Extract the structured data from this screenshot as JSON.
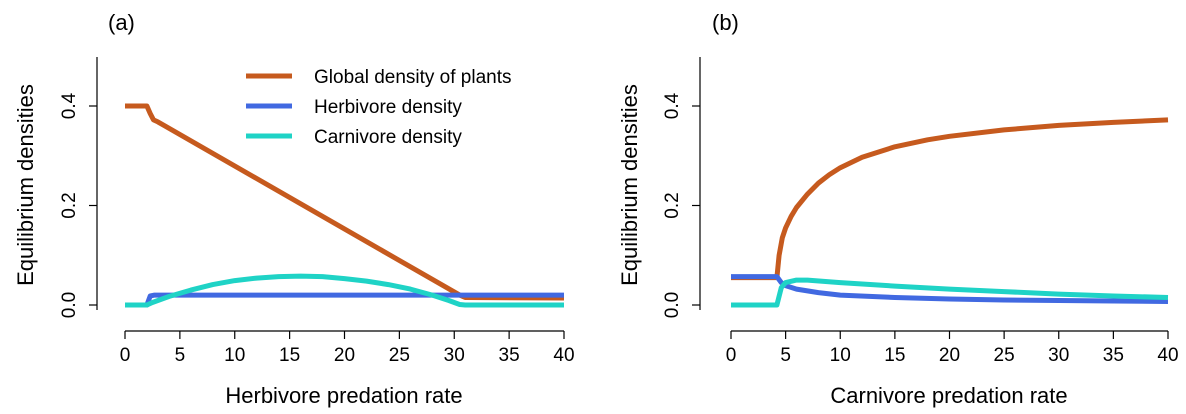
{
  "colors": {
    "plants": "#c65a1e",
    "herbivore": "#4169e1",
    "carnivore": "#1fd3c6"
  },
  "chart_data": [
    {
      "type": "line",
      "panel_label": "(a)",
      "xlabel": "Herbivore predation rate",
      "ylabel": "Equilibrium densities",
      "xlim": [
        0,
        40
      ],
      "ylim": [
        0,
        0.52
      ],
      "x_ticks": [
        0,
        5,
        10,
        15,
        20,
        25,
        30,
        35,
        40
      ],
      "y_ticks": [
        0.0,
        0.2,
        0.4
      ],
      "y_tick_labels": [
        "0.0",
        "0.2",
        "0.4"
      ],
      "legend": {
        "position": "top-right",
        "entries": [
          "Global density of plants",
          "Herbivore density",
          "Carnivore density"
        ]
      },
      "series": [
        {
          "name": "Global density of plants",
          "color_key": "plants",
          "points": [
            [
              0,
              0.4
            ],
            [
              2,
              0.4
            ],
            [
              2.3,
              0.385
            ],
            [
              2.6,
              0.372
            ],
            [
              3,
              0.368
            ],
            [
              30.5,
              0.02
            ],
            [
              31,
              0.015
            ],
            [
              40,
              0.014
            ]
          ]
        },
        {
          "name": "Herbivore density",
          "color_key": "herbivore",
          "points": [
            [
              0,
              0.0
            ],
            [
              2.0,
              0.0
            ],
            [
              2.3,
              0.018
            ],
            [
              2.7,
              0.02
            ],
            [
              40,
              0.02
            ]
          ]
        },
        {
          "name": "Carnivore density",
          "color_key": "carnivore",
          "points": [
            [
              0,
              0.0
            ],
            [
              2.0,
              0.0
            ],
            [
              2.5,
              0.005
            ],
            [
              4,
              0.017
            ],
            [
              6,
              0.03
            ],
            [
              8,
              0.041
            ],
            [
              10,
              0.049
            ],
            [
              12,
              0.054
            ],
            [
              14,
              0.057
            ],
            [
              16,
              0.058
            ],
            [
              18,
              0.057
            ],
            [
              20,
              0.053
            ],
            [
              22,
              0.048
            ],
            [
              24,
              0.041
            ],
            [
              26,
              0.032
            ],
            [
              28,
              0.02
            ],
            [
              29.5,
              0.009
            ],
            [
              30.5,
              0.001
            ],
            [
              31,
              0.0
            ],
            [
              40,
              0.0
            ]
          ]
        }
      ]
    },
    {
      "type": "line",
      "panel_label": "(b)",
      "xlabel": "Carnivore predation rate",
      "ylabel": "Equilibrium densities",
      "xlim": [
        0,
        40
      ],
      "ylim": [
        0,
        0.52
      ],
      "x_ticks": [
        0,
        5,
        10,
        15,
        20,
        25,
        30,
        35,
        40
      ],
      "y_ticks": [
        0.0,
        0.2,
        0.4
      ],
      "y_tick_labels": [
        "0.0",
        "0.2",
        "0.4"
      ],
      "series": [
        {
          "name": "Global density of plants",
          "color_key": "plants",
          "points": [
            [
              0,
              0.055
            ],
            [
              4.2,
              0.055
            ],
            [
              4.4,
              0.1
            ],
            [
              4.7,
              0.135
            ],
            [
              5,
              0.155
            ],
            [
              5.5,
              0.178
            ],
            [
              6,
              0.196
            ],
            [
              7,
              0.223
            ],
            [
              8,
              0.245
            ],
            [
              9,
              0.262
            ],
            [
              10,
              0.276
            ],
            [
              12,
              0.297
            ],
            [
              15,
              0.318
            ],
            [
              18,
              0.332
            ],
            [
              20,
              0.339
            ],
            [
              25,
              0.352
            ],
            [
              30,
              0.361
            ],
            [
              35,
              0.367
            ],
            [
              40,
              0.372
            ]
          ]
        },
        {
          "name": "Herbivore density",
          "color_key": "herbivore",
          "points": [
            [
              0,
              0.057
            ],
            [
              4.2,
              0.057
            ],
            [
              4.6,
              0.045
            ],
            [
              5,
              0.039
            ],
            [
              6,
              0.032
            ],
            [
              8,
              0.025
            ],
            [
              10,
              0.02
            ],
            [
              15,
              0.015
            ],
            [
              20,
              0.012
            ],
            [
              25,
              0.01
            ],
            [
              30,
              0.009
            ],
            [
              35,
              0.008
            ],
            [
              40,
              0.007
            ]
          ]
        },
        {
          "name": "Carnivore density",
          "color_key": "carnivore",
          "points": [
            [
              0,
              0.0
            ],
            [
              4.2,
              0.0
            ],
            [
              4.6,
              0.035
            ],
            [
              5,
              0.045
            ],
            [
              6,
              0.05
            ],
            [
              7,
              0.05
            ],
            [
              10,
              0.045
            ],
            [
              15,
              0.038
            ],
            [
              20,
              0.032
            ],
            [
              25,
              0.027
            ],
            [
              30,
              0.022
            ],
            [
              35,
              0.018
            ],
            [
              40,
              0.015
            ]
          ]
        }
      ]
    }
  ]
}
